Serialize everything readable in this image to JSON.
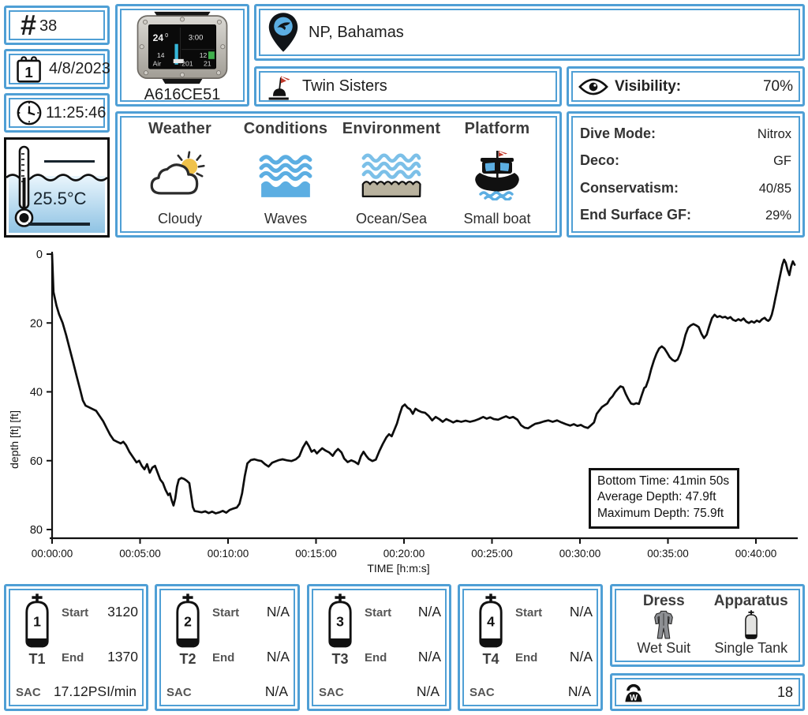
{
  "colors": {
    "accent_blue": "#4f9fd5",
    "icon_blue": "#5caee2",
    "sun_yellow": "#f0c24b",
    "sand": "#b9b29e",
    "flag_red": "#c0392b",
    "screen_cyan": "#35b6d9",
    "screen_green": "#3fae4c"
  },
  "header": {
    "number_sign": "#",
    "dive_number": "38",
    "date": "4/8/2023",
    "time": "11:25:46",
    "water_temp": "25.5°C",
    "location": "NP, Bahamas",
    "site": "Twin Sisters",
    "visibility_label": "Visibility:",
    "visibility_value": "70%"
  },
  "computer": {
    "id": "A616CE51",
    "screen": {
      "depth": "24",
      "depth_sup": "0",
      "stop": "3:00",
      "ndl": "14",
      "deco": "12",
      "gas": "Air",
      "pressure": "201",
      "misc": "21"
    }
  },
  "conditions_panel": {
    "columns": [
      {
        "title": "Weather",
        "label": "Cloudy"
      },
      {
        "title": "Conditions",
        "label": "Waves"
      },
      {
        "title": "Environment",
        "label": "Ocean/Sea"
      },
      {
        "title": "Platform",
        "label": "Small boat"
      }
    ]
  },
  "dive_settings": {
    "rows": [
      {
        "label": "Dive Mode:",
        "value": "Nitrox"
      },
      {
        "label": "Deco:",
        "value": "GF"
      },
      {
        "label": "Conservatism:",
        "value": "40/85"
      },
      {
        "label": "End Surface GF:",
        "value": "29%"
      }
    ]
  },
  "chart_data": {
    "type": "line",
    "title": "",
    "xlabel": "TIME [h:m:s]",
    "ylabel": "depth [ft] [ft]",
    "x_ticks": [
      "00:00:00",
      "00:05:00",
      "00:10:00",
      "00:15:00",
      "00:20:00",
      "00:25:00",
      "00:30:00",
      "00:35:00",
      "00:40:00"
    ],
    "x_tick_minutes": [
      0,
      5,
      10,
      15,
      20,
      25,
      30,
      35,
      40
    ],
    "xlim_minutes": [
      0,
      42.4
    ],
    "ylim": [
      0,
      80
    ],
    "y_ticks": [
      0,
      20,
      40,
      60,
      80
    ],
    "grid": false,
    "legend": false,
    "annotation": {
      "lines": [
        "Bottom Time: 41min 50s",
        "Average Depth: 47.9ft",
        "Maximum Depth: 75.9ft"
      ]
    },
    "series": [
      {
        "name": "depth profile",
        "points": [
          [
            0,
            0
          ],
          [
            0.08,
            11
          ],
          [
            0.25,
            15
          ],
          [
            0.4,
            17.5
          ],
          [
            0.6,
            20
          ],
          [
            0.8,
            23.5
          ],
          [
            1,
            27.5
          ],
          [
            1.2,
            31.5
          ],
          [
            1.4,
            35.5
          ],
          [
            1.6,
            39.5
          ],
          [
            1.75,
            42.5
          ],
          [
            1.9,
            44
          ],
          [
            2.1,
            44.5
          ],
          [
            2.3,
            45
          ],
          [
            2.5,
            45.5
          ],
          [
            2.7,
            47
          ],
          [
            2.9,
            48.5
          ],
          [
            3.1,
            50.5
          ],
          [
            3.3,
            52.5
          ],
          [
            3.5,
            54
          ],
          [
            3.7,
            54.5
          ],
          [
            3.9,
            55
          ],
          [
            4.05,
            54.5
          ],
          [
            4.2,
            55.5
          ],
          [
            4.4,
            57.5
          ],
          [
            4.6,
            59
          ],
          [
            4.8,
            60.5
          ],
          [
            4.95,
            60
          ],
          [
            5.1,
            61.5
          ],
          [
            5.25,
            62.5
          ],
          [
            5.4,
            61
          ],
          [
            5.55,
            63.5
          ],
          [
            5.7,
            62
          ],
          [
            5.85,
            61.5
          ],
          [
            6,
            63.5
          ],
          [
            6.15,
            65.5
          ],
          [
            6.3,
            66.5
          ],
          [
            6.45,
            68.5
          ],
          [
            6.6,
            70
          ],
          [
            6.7,
            69.5
          ],
          [
            6.8,
            71.5
          ],
          [
            6.9,
            73
          ],
          [
            7,
            71
          ],
          [
            7.1,
            67.5
          ],
          [
            7.2,
            65.5
          ],
          [
            7.35,
            65
          ],
          [
            7.5,
            65.3
          ],
          [
            7.65,
            65.8
          ],
          [
            7.8,
            66.5
          ],
          [
            7.9,
            70
          ],
          [
            8,
            73.5
          ],
          [
            8.1,
            74.6
          ],
          [
            8.3,
            74.8
          ],
          [
            8.5,
            75
          ],
          [
            8.7,
            74.7
          ],
          [
            8.9,
            75.2
          ],
          [
            9.1,
            74.8
          ],
          [
            9.3,
            75.3
          ],
          [
            9.5,
            75
          ],
          [
            9.7,
            74.6
          ],
          [
            9.9,
            75.1
          ],
          [
            10.1,
            74.3
          ],
          [
            10.3,
            73.9
          ],
          [
            10.5,
            73.6
          ],
          [
            10.65,
            72.5
          ],
          [
            10.8,
            69.5
          ],
          [
            10.95,
            64.5
          ],
          [
            11.1,
            60.8
          ],
          [
            11.3,
            59.8
          ],
          [
            11.5,
            59.6
          ],
          [
            11.7,
            59.9
          ],
          [
            11.9,
            60.1
          ],
          [
            12.1,
            61
          ],
          [
            12.3,
            61.7
          ],
          [
            12.5,
            60.6
          ],
          [
            12.7,
            60.2
          ],
          [
            12.9,
            59.8
          ],
          [
            13.1,
            59.6
          ],
          [
            13.35,
            59.9
          ],
          [
            13.6,
            60.1
          ],
          [
            13.85,
            59.6
          ],
          [
            14.05,
            58.7
          ],
          [
            14.25,
            56.2
          ],
          [
            14.45,
            54.5
          ],
          [
            14.6,
            55.8
          ],
          [
            14.75,
            57.4
          ],
          [
            14.9,
            56.9
          ],
          [
            15.05,
            57.9
          ],
          [
            15.2,
            57.1
          ],
          [
            15.35,
            56.4
          ],
          [
            15.55,
            57.1
          ],
          [
            15.75,
            57.6
          ],
          [
            15.95,
            58.6
          ],
          [
            16.1,
            57.4
          ],
          [
            16.25,
            56.6
          ],
          [
            16.45,
            57.6
          ],
          [
            16.6,
            59.4
          ],
          [
            16.8,
            60.4
          ],
          [
            17,
            59.9
          ],
          [
            17.2,
            60.3
          ],
          [
            17.4,
            61
          ],
          [
            17.55,
            58.7
          ],
          [
            17.7,
            57.4
          ],
          [
            17.85,
            58.6
          ],
          [
            18,
            59.5
          ],
          [
            18.2,
            60.1
          ],
          [
            18.4,
            59.7
          ],
          [
            18.6,
            57.2
          ],
          [
            18.8,
            55.1
          ],
          [
            19,
            53.2
          ],
          [
            19.15,
            52.3
          ],
          [
            19.3,
            52.9
          ],
          [
            19.45,
            51.1
          ],
          [
            19.6,
            49.2
          ],
          [
            19.75,
            46.6
          ],
          [
            19.9,
            44.3
          ],
          [
            20.05,
            43.7
          ],
          [
            20.2,
            44.6
          ],
          [
            20.35,
            45.1
          ],
          [
            20.5,
            46.4
          ],
          [
            20.65,
            44.9
          ],
          [
            20.8,
            45.4
          ],
          [
            21,
            45.9
          ],
          [
            21.2,
            46.1
          ],
          [
            21.4,
            47
          ],
          [
            21.6,
            48.3
          ],
          [
            21.8,
            47.3
          ],
          [
            22,
            47.9
          ],
          [
            22.2,
            48.7
          ],
          [
            22.4,
            47.9
          ],
          [
            22.6,
            48.4
          ],
          [
            22.8,
            48.9
          ],
          [
            23,
            48.4
          ],
          [
            23.25,
            48.7
          ],
          [
            23.5,
            48.4
          ],
          [
            23.75,
            48.7
          ],
          [
            24,
            48.4
          ],
          [
            24.25,
            47.9
          ],
          [
            24.5,
            47.3
          ],
          [
            24.7,
            47.8
          ],
          [
            24.9,
            47.4
          ],
          [
            25.1,
            47.9
          ],
          [
            25.35,
            48.1
          ],
          [
            25.6,
            47.5
          ],
          [
            25.8,
            47.1
          ],
          [
            26,
            47.6
          ],
          [
            26.2,
            47.3
          ],
          [
            26.45,
            48.1
          ],
          [
            26.65,
            49.7
          ],
          [
            26.85,
            50.4
          ],
          [
            27.05,
            50.6
          ],
          [
            27.25,
            49.9
          ],
          [
            27.45,
            49.3
          ],
          [
            27.7,
            49
          ],
          [
            27.95,
            48.6
          ],
          [
            28.2,
            48.3
          ],
          [
            28.45,
            48.7
          ],
          [
            28.7,
            48.3
          ],
          [
            28.95,
            48.9
          ],
          [
            29.2,
            49.4
          ],
          [
            29.45,
            49.8
          ],
          [
            29.65,
            49.4
          ],
          [
            29.85,
            49.9
          ],
          [
            30.05,
            49.6
          ],
          [
            30.25,
            50.2
          ],
          [
            30.45,
            50.5
          ],
          [
            30.65,
            49.6
          ],
          [
            30.8,
            48.9
          ],
          [
            30.95,
            46.4
          ],
          [
            31.1,
            45.4
          ],
          [
            31.25,
            44.4
          ],
          [
            31.4,
            43.9
          ],
          [
            31.55,
            43.4
          ],
          [
            31.7,
            42.1
          ],
          [
            31.85,
            41.3
          ],
          [
            32,
            40.1
          ],
          [
            32.15,
            39.2
          ],
          [
            32.3,
            38.4
          ],
          [
            32.45,
            38.7
          ],
          [
            32.6,
            40.6
          ],
          [
            32.75,
            42.1
          ],
          [
            32.9,
            43.4
          ],
          [
            33.05,
            43.6
          ],
          [
            33.2,
            43.3
          ],
          [
            33.35,
            43.5
          ],
          [
            33.5,
            41.1
          ],
          [
            33.65,
            38.9
          ],
          [
            33.75,
            38.5
          ],
          [
            33.9,
            36.3
          ],
          [
            34.05,
            33.4
          ],
          [
            34.2,
            30.9
          ],
          [
            34.35,
            28.9
          ],
          [
            34.5,
            27.4
          ],
          [
            34.65,
            26.8
          ],
          [
            34.8,
            27.4
          ],
          [
            34.95,
            28.6
          ],
          [
            35.1,
            29.9
          ],
          [
            35.25,
            30.7
          ],
          [
            35.4,
            31.1
          ],
          [
            35.55,
            30.6
          ],
          [
            35.7,
            28.9
          ],
          [
            35.85,
            26.4
          ],
          [
            36,
            23.4
          ],
          [
            36.15,
            21.4
          ],
          [
            36.3,
            20.7
          ],
          [
            36.45,
            20.3
          ],
          [
            36.6,
            20.7
          ],
          [
            36.75,
            21.2
          ],
          [
            36.9,
            23.1
          ],
          [
            37.05,
            24.4
          ],
          [
            37.2,
            23.4
          ],
          [
            37.35,
            20.9
          ],
          [
            37.5,
            18.6
          ],
          [
            37.65,
            17.6
          ],
          [
            37.8,
            18.3
          ],
          [
            37.95,
            18
          ],
          [
            38.1,
            18.4
          ],
          [
            38.25,
            18.2
          ],
          [
            38.4,
            18.7
          ],
          [
            38.55,
            18.3
          ],
          [
            38.7,
            19.1
          ],
          [
            38.85,
            19.4
          ],
          [
            39,
            18.9
          ],
          [
            39.15,
            19.3
          ],
          [
            39.3,
            18.7
          ],
          [
            39.45,
            19.6
          ],
          [
            39.6,
            20
          ],
          [
            39.75,
            19.5
          ],
          [
            39.9,
            19.9
          ],
          [
            40.05,
            19.3
          ],
          [
            40.2,
            19.7
          ],
          [
            40.35,
            18.9
          ],
          [
            40.5,
            18.5
          ],
          [
            40.6,
            19.1
          ],
          [
            40.7,
            19.4
          ],
          [
            40.8,
            18.9
          ],
          [
            40.9,
            17.6
          ],
          [
            41,
            15.5
          ],
          [
            41.1,
            13
          ],
          [
            41.2,
            10.5
          ],
          [
            41.3,
            8
          ],
          [
            41.4,
            5.6
          ],
          [
            41.5,
            3.1
          ],
          [
            41.6,
            1.6
          ],
          [
            41.7,
            2.6
          ],
          [
            41.8,
            4.6
          ],
          [
            41.9,
            6.1
          ],
          [
            42,
            3.6
          ],
          [
            42.1,
            2.1
          ],
          [
            42.2,
            3.1
          ]
        ]
      }
    ],
    "bottom_time": "41min 50s",
    "average_depth_ft": 47.9,
    "maximum_depth_ft": 75.9
  },
  "tank_labels": {
    "start": "Start",
    "end": "End",
    "sac": "SAC"
  },
  "tanks": [
    {
      "id": "1",
      "name": "T1",
      "start": "3120",
      "end": "1370",
      "sac": "17.12PSI/min"
    },
    {
      "id": "2",
      "name": "T2",
      "start": "N/A",
      "end": "N/A",
      "sac": "N/A"
    },
    {
      "id": "3",
      "name": "T3",
      "start": "N/A",
      "end": "N/A",
      "sac": "N/A"
    },
    {
      "id": "4",
      "name": "T4",
      "start": "N/A",
      "end": "N/A",
      "sac": "N/A"
    }
  ],
  "equipment": {
    "dress_title": "Dress",
    "dress_label": "Wet Suit",
    "apparatus_title": "Apparatus",
    "apparatus_label": "Single Tank",
    "weight_value": "18"
  }
}
